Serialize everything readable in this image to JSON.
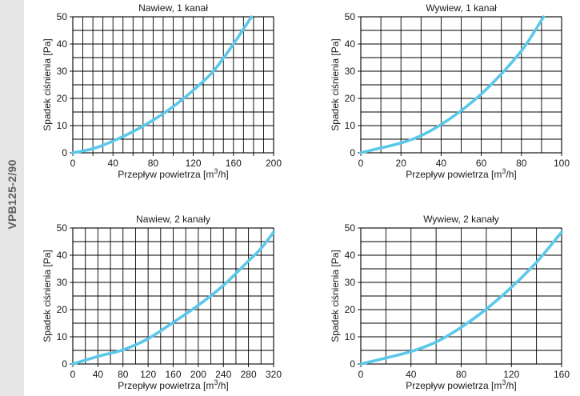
{
  "model_label": "VPB125-2/90",
  "colors": {
    "curve": "#5bc8ea",
    "band": "#e6e6e6"
  },
  "chart_data": [
    {
      "type": "line",
      "title": "Nawiew, 1 kanał",
      "xlabel_main": "Przepływ powietrza [m",
      "xlabel_sup": "3",
      "xlabel_end": "/h]",
      "ylabel": "Spadek ciśnienia [Pa]",
      "xlim": [
        0,
        200
      ],
      "ylim": [
        0,
        50
      ],
      "x_major": 20,
      "x_minor": 10,
      "y_step": 5,
      "x_ticks": [
        0,
        40,
        80,
        120,
        160,
        200
      ],
      "y_ticks": [
        0,
        10,
        20,
        30,
        40,
        50
      ],
      "grid": true,
      "series": [
        {
          "x": [
            0,
            20,
            40,
            60,
            80,
            100,
            120,
            140,
            160,
            170,
            178
          ],
          "y": [
            0,
            1.5,
            4.3,
            7.8,
            12,
            17,
            23,
            30,
            40,
            45.5,
            50
          ]
        }
      ]
    },
    {
      "type": "line",
      "title": "Wywiew, 1 kanał",
      "xlabel_main": "Przepływ powietrza [m",
      "xlabel_sup": "3",
      "xlabel_end": "/h]",
      "ylabel": "Spadek ciśnienia [Pa]",
      "xlim": [
        0,
        100
      ],
      "ylim": [
        0,
        50
      ],
      "x_major": 20,
      "x_minor": 10,
      "y_step": 5,
      "x_ticks": [
        0,
        20,
        40,
        60,
        80,
        100
      ],
      "y_ticks": [
        0,
        10,
        20,
        30,
        40,
        50
      ],
      "grid": true,
      "series": [
        {
          "x": [
            0,
            10,
            20,
            30,
            40,
            50,
            60,
            70,
            80,
            86,
            91
          ],
          "y": [
            0,
            1.8,
            3.6,
            6.3,
            10.4,
            15.5,
            21.6,
            29,
            37.5,
            44,
            50
          ]
        }
      ]
    },
    {
      "type": "line",
      "title": "Nawiew, 2 kanały",
      "xlabel_main": "Przepływ powietrza [m",
      "xlabel_sup": "3",
      "xlabel_end": "/h]",
      "ylabel": "Spadek ciśnienia [Pa]",
      "xlim": [
        0,
        320
      ],
      "ylim": [
        0,
        50
      ],
      "x_major": 40,
      "x_minor": 20,
      "y_step": 5,
      "x_ticks": [
        0,
        40,
        80,
        120,
        160,
        200,
        240,
        280,
        320
      ],
      "y_ticks": [
        0,
        10,
        20,
        30,
        40,
        50
      ],
      "grid": true,
      "series": [
        {
          "x": [
            0,
            40,
            80,
            120,
            160,
            200,
            240,
            280,
            300,
            320
          ],
          "y": [
            0,
            2.8,
            5.2,
            9.3,
            15.3,
            21.6,
            28.9,
            37.9,
            42.5,
            48.5
          ]
        }
      ]
    },
    {
      "type": "line",
      "title": "Wywiew, 2 kanały",
      "xlabel_main": "Przepływ powietrza [m",
      "xlabel_sup": "3",
      "xlabel_end": "/h]",
      "ylabel": "Spadek ciśnienia [Pa]",
      "xlim": [
        0,
        160
      ],
      "ylim": [
        0,
        50
      ],
      "x_major": 40,
      "x_minor": 20,
      "y_step": 5,
      "x_ticks": [
        0,
        40,
        80,
        120,
        160
      ],
      "y_ticks": [
        0,
        10,
        20,
        30,
        40,
        50
      ],
      "grid": true,
      "series": [
        {
          "x": [
            0,
            20,
            40,
            60,
            80,
            100,
            120,
            140,
            160
          ],
          "y": [
            0,
            2.2,
            4.6,
            8.1,
            13.5,
            20.2,
            28.2,
            37.4,
            48.5
          ]
        }
      ]
    }
  ]
}
